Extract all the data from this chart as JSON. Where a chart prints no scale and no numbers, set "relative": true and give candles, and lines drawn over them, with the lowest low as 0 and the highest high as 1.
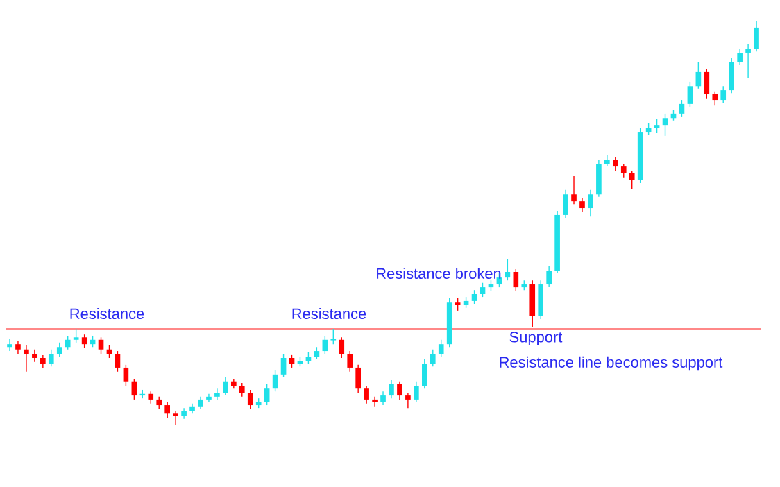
{
  "chart_data": {
    "type": "candlestick",
    "relative": true,
    "categories": [
      null,
      null,
      null,
      null,
      null,
      null,
      null,
      null,
      null,
      null,
      null,
      null,
      null,
      null,
      null,
      null,
      null,
      null,
      null,
      null,
      null,
      null,
      null,
      null,
      null,
      null,
      null,
      null,
      null,
      null,
      null,
      null,
      null,
      null,
      null,
      null,
      null,
      null,
      null,
      null,
      null,
      null,
      null,
      null,
      null,
      null,
      null,
      null,
      null,
      null,
      null,
      null,
      null,
      null,
      null,
      null,
      null,
      null,
      null,
      null,
      null,
      null,
      null,
      null,
      null,
      null,
      null,
      null,
      null,
      null,
      null,
      null,
      null,
      null,
      null,
      null,
      null,
      null,
      null,
      null,
      null,
      null,
      null,
      null,
      null,
      null,
      null,
      null,
      null,
      null,
      null
    ],
    "ohlc": [
      [
        0.192,
        0.213,
        0.182,
        0.199
      ],
      [
        0.199,
        0.206,
        0.175,
        0.186
      ],
      [
        0.186,
        0.196,
        0.131,
        0.175
      ],
      [
        0.175,
        0.186,
        0.155,
        0.165
      ],
      [
        0.165,
        0.172,
        0.141,
        0.151
      ],
      [
        0.151,
        0.186,
        0.144,
        0.175
      ],
      [
        0.175,
        0.203,
        0.168,
        0.192
      ],
      [
        0.192,
        0.22,
        0.186,
        0.21
      ],
      [
        0.21,
        0.237,
        0.203,
        0.216
      ],
      [
        0.216,
        0.223,
        0.189,
        0.199
      ],
      [
        0.199,
        0.22,
        0.192,
        0.21
      ],
      [
        0.21,
        0.216,
        0.175,
        0.186
      ],
      [
        0.186,
        0.196,
        0.165,
        0.175
      ],
      [
        0.175,
        0.182,
        0.131,
        0.141
      ],
      [
        0.141,
        0.148,
        0.096,
        0.107
      ],
      [
        0.107,
        0.113,
        0.062,
        0.072
      ],
      [
        0.072,
        0.086,
        0.065,
        0.076
      ],
      [
        0.076,
        0.082,
        0.052,
        0.062
      ],
      [
        0.062,
        0.069,
        0.038,
        0.048
      ],
      [
        0.048,
        0.055,
        0.017,
        0.027
      ],
      [
        0.027,
        0.034,
        0,
        0.021
      ],
      [
        0.021,
        0.041,
        0.014,
        0.034
      ],
      [
        0.034,
        0.052,
        0.027,
        0.045
      ],
      [
        0.045,
        0.069,
        0.038,
        0.062
      ],
      [
        0.062,
        0.076,
        0.055,
        0.069
      ],
      [
        0.069,
        0.089,
        0.062,
        0.079
      ],
      [
        0.079,
        0.117,
        0.072,
        0.107
      ],
      [
        0.107,
        0.113,
        0.089,
        0.096
      ],
      [
        0.096,
        0.103,
        0.069,
        0.079
      ],
      [
        0.079,
        0.086,
        0.038,
        0.048
      ],
      [
        0.048,
        0.065,
        0.041,
        0.055
      ],
      [
        0.055,
        0.1,
        0.048,
        0.089
      ],
      [
        0.089,
        0.134,
        0.082,
        0.124
      ],
      [
        0.124,
        0.175,
        0.117,
        0.165
      ],
      [
        0.165,
        0.172,
        0.141,
        0.151
      ],
      [
        0.151,
        0.168,
        0.144,
        0.158
      ],
      [
        0.158,
        0.179,
        0.151,
        0.168
      ],
      [
        0.168,
        0.192,
        0.162,
        0.182
      ],
      [
        0.182,
        0.22,
        0.175,
        0.21
      ],
      [
        0.21,
        0.237,
        0.199,
        0.21
      ],
      [
        0.21,
        0.216,
        0.165,
        0.175
      ],
      [
        0.175,
        0.182,
        0.131,
        0.141
      ],
      [
        0.141,
        0.148,
        0.079,
        0.089
      ],
      [
        0.089,
        0.096,
        0.052,
        0.062
      ],
      [
        0.062,
        0.069,
        0.045,
        0.055
      ],
      [
        0.055,
        0.082,
        0.048,
        0.072
      ],
      [
        0.072,
        0.11,
        0.065,
        0.1
      ],
      [
        0.1,
        0.107,
        0.062,
        0.072
      ],
      [
        0.072,
        0.079,
        0.041,
        0.062
      ],
      [
        0.062,
        0.107,
        0.055,
        0.096
      ],
      [
        0.096,
        0.162,
        0.089,
        0.151
      ],
      [
        0.151,
        0.186,
        0.144,
        0.175
      ],
      [
        0.175,
        0.21,
        0.168,
        0.199
      ],
      [
        0.199,
        0.313,
        0.192,
        0.302
      ],
      [
        0.302,
        0.313,
        0.282,
        0.296
      ],
      [
        0.296,
        0.316,
        0.289,
        0.306
      ],
      [
        0.306,
        0.333,
        0.299,
        0.323
      ],
      [
        0.323,
        0.351,
        0.316,
        0.34
      ],
      [
        0.34,
        0.357,
        0.33,
        0.347
      ],
      [
        0.347,
        0.375,
        0.34,
        0.364
      ],
      [
        0.364,
        0.409,
        0.357,
        0.378
      ],
      [
        0.378,
        0.385,
        0.33,
        0.34
      ],
      [
        0.34,
        0.357,
        0.333,
        0.347
      ],
      [
        0.347,
        0.357,
        0.241,
        0.268
      ],
      [
        0.268,
        0.357,
        0.261,
        0.347
      ],
      [
        0.347,
        0.392,
        0.34,
        0.381
      ],
      [
        0.381,
        0.529,
        0.375,
        0.519
      ],
      [
        0.519,
        0.581,
        0.512,
        0.57
      ],
      [
        0.57,
        0.615,
        0.546,
        0.553
      ],
      [
        0.553,
        0.56,
        0.526,
        0.536
      ],
      [
        0.536,
        0.581,
        0.515,
        0.57
      ],
      [
        0.57,
        0.656,
        0.564,
        0.646
      ],
      [
        0.646,
        0.667,
        0.639,
        0.656
      ],
      [
        0.656,
        0.663,
        0.629,
        0.639
      ],
      [
        0.639,
        0.646,
        0.612,
        0.622
      ],
      [
        0.622,
        0.629,
        0.584,
        0.605
      ],
      [
        0.605,
        0.735,
        0.598,
        0.725
      ],
      [
        0.725,
        0.746,
        0.718,
        0.735
      ],
      [
        0.735,
        0.756,
        0.722,
        0.742
      ],
      [
        0.742,
        0.77,
        0.715,
        0.759
      ],
      [
        0.759,
        0.78,
        0.753,
        0.77
      ],
      [
        0.77,
        0.804,
        0.763,
        0.794
      ],
      [
        0.794,
        0.849,
        0.787,
        0.838
      ],
      [
        0.838,
        0.897,
        0.832,
        0.873
      ],
      [
        0.873,
        0.88,
        0.808,
        0.818
      ],
      [
        0.818,
        0.825,
        0.79,
        0.804
      ],
      [
        0.804,
        0.838,
        0.797,
        0.828
      ],
      [
        0.828,
        0.907,
        0.821,
        0.897
      ],
      [
        0.897,
        0.931,
        0.89,
        0.921
      ],
      [
        0.921,
        0.942,
        0.859,
        0.931
      ],
      [
        0.931,
        1,
        0.924,
        0.983
      ]
    ],
    "colors": [
      "#20e0e8",
      "#ff0000",
      "#ff0000",
      "#ff0000",
      "#ff0000",
      "#20e0e8",
      "#20e0e8",
      "#20e0e8",
      "#20e0e8",
      "#ff0000",
      "#20e0e8",
      "#ff0000",
      "#ff0000",
      "#ff0000",
      "#ff0000",
      "#ff0000",
      "#20e0e8",
      "#ff0000",
      "#ff0000",
      "#ff0000",
      "#ff0000",
      "#20e0e8",
      "#20e0e8",
      "#20e0e8",
      "#20e0e8",
      "#20e0e8",
      "#20e0e8",
      "#ff0000",
      "#ff0000",
      "#ff0000",
      "#20e0e8",
      "#20e0e8",
      "#20e0e8",
      "#20e0e8",
      "#ff0000",
      "#20e0e8",
      "#20e0e8",
      "#20e0e8",
      "#20e0e8",
      "#20e0e8",
      "#ff0000",
      "#ff0000",
      "#ff0000",
      "#ff0000",
      "#ff0000",
      "#20e0e8",
      "#20e0e8",
      "#ff0000",
      "#ff0000",
      "#20e0e8",
      "#20e0e8",
      "#20e0e8",
      "#20e0e8",
      "#20e0e8",
      "#ff0000",
      "#20e0e8",
      "#20e0e8",
      "#20e0e8",
      "#20e0e8",
      "#20e0e8",
      "#20e0e8",
      "#ff0000",
      "#20e0e8",
      "#ff0000",
      "#20e0e8",
      "#20e0e8",
      "#20e0e8",
      "#20e0e8",
      "#ff0000",
      "#ff0000",
      "#20e0e8",
      "#20e0e8",
      "#20e0e8",
      "#ff0000",
      "#ff0000",
      "#ff0000",
      "#20e0e8",
      "#20e0e8",
      "#20e0e8",
      "#20e0e8",
      "#20e0e8",
      "#20e0e8",
      "#20e0e8",
      "#20e0e8",
      "#ff0000",
      "#ff0000",
      "#20e0e8",
      "#20e0e8",
      "#20e0e8",
      "#20e0e8",
      "#20e0e8"
    ],
    "ref_lines": [
      {
        "axis": "y",
        "value": 0.237,
        "color": "#ff6060"
      }
    ],
    "annotations": [
      "Resistance",
      "Resistance",
      "Resistance broken",
      "Support",
      "Resistance line becomes  support"
    ]
  }
}
